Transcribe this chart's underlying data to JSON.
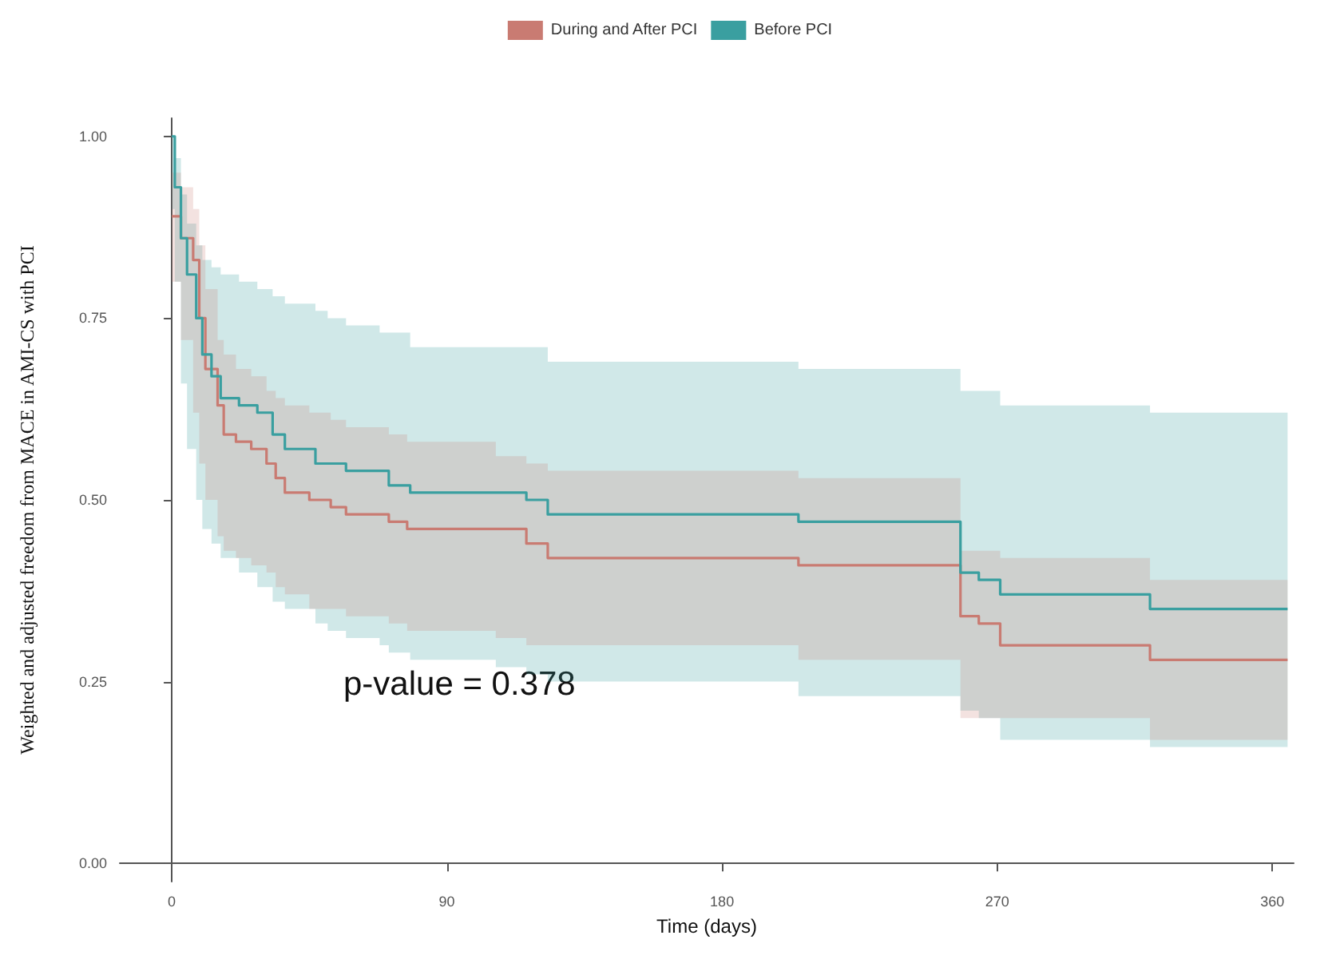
{
  "chart_data": {
    "type": "step",
    "xlabel": "Time (days)",
    "ylabel": "Weighted and adjusted freedom from MACE in AMI-CS with PCI",
    "annotations": [
      "p-value = 0.378"
    ],
    "xlim": [
      -17,
      367
    ],
    "xticks": [
      0,
      90,
      180,
      270,
      360
    ],
    "ylim": [
      -0.025,
      1.025
    ],
    "yticks": [
      {
        "value": 0,
        "label": "0.00"
      },
      {
        "value": 0.25,
        "label": "0.25"
      },
      {
        "value": 0.5,
        "label": "0.50"
      },
      {
        "value": 0.75,
        "label": "0.75"
      },
      {
        "value": 1,
        "label": "1.00"
      }
    ],
    "legend": "top",
    "series": [
      {
        "name": "During and After PCI",
        "color": "#c97b72",
        "x": [
          0,
          3,
          7,
          9,
          11,
          15,
          17,
          21,
          26,
          31,
          34,
          37,
          45,
          52,
          57,
          71,
          77,
          106,
          116,
          123,
          205,
          258,
          264,
          271,
          320,
          365
        ],
        "values": [
          0.89,
          0.86,
          0.83,
          0.75,
          0.68,
          0.63,
          0.59,
          0.58,
          0.57,
          0.55,
          0.53,
          0.51,
          0.5,
          0.49,
          0.48,
          0.47,
          0.46,
          0.46,
          0.44,
          0.42,
          0.41,
          0.34,
          0.33,
          0.3,
          0.28,
          0.28
        ],
        "lower": [
          0.8,
          0.72,
          0.62,
          0.55,
          0.5,
          0.45,
          0.43,
          0.42,
          0.41,
          0.4,
          0.38,
          0.37,
          0.35,
          0.35,
          0.34,
          0.33,
          0.32,
          0.31,
          0.3,
          0.3,
          0.28,
          0.2,
          0.2,
          0.2,
          0.17,
          0.17
        ],
        "upper": [
          0.95,
          0.93,
          0.9,
          0.85,
          0.79,
          0.72,
          0.7,
          0.68,
          0.67,
          0.65,
          0.64,
          0.63,
          0.62,
          0.61,
          0.6,
          0.59,
          0.58,
          0.56,
          0.55,
          0.54,
          0.53,
          0.43,
          0.43,
          0.42,
          0.39,
          0.39
        ]
      },
      {
        "name": "Before PCI",
        "color": "#3a9fa0",
        "x": [
          0,
          1,
          3,
          5,
          8,
          10,
          13,
          16,
          22,
          28,
          33,
          37,
          47,
          51,
          57,
          68,
          71,
          78,
          106,
          116,
          123,
          205,
          258,
          264,
          271,
          320,
          365
        ],
        "values": [
          1.0,
          0.93,
          0.86,
          0.81,
          0.75,
          0.7,
          0.67,
          0.64,
          0.63,
          0.62,
          0.59,
          0.57,
          0.55,
          0.55,
          0.54,
          0.54,
          0.52,
          0.51,
          0.51,
          0.5,
          0.48,
          0.47,
          0.4,
          0.39,
          0.37,
          0.35,
          0.35
        ],
        "lower": [
          0.9,
          0.8,
          0.66,
          0.57,
          0.5,
          0.46,
          0.44,
          0.42,
          0.4,
          0.38,
          0.36,
          0.35,
          0.33,
          0.32,
          0.31,
          0.3,
          0.29,
          0.28,
          0.27,
          0.26,
          0.25,
          0.23,
          0.21,
          0.2,
          0.17,
          0.16,
          0.16
        ],
        "upper": [
          1.0,
          0.97,
          0.92,
          0.88,
          0.85,
          0.83,
          0.82,
          0.81,
          0.8,
          0.79,
          0.78,
          0.77,
          0.76,
          0.75,
          0.74,
          0.73,
          0.73,
          0.71,
          0.71,
          0.71,
          0.69,
          0.68,
          0.65,
          0.65,
          0.63,
          0.62,
          0.62
        ]
      }
    ]
  }
}
